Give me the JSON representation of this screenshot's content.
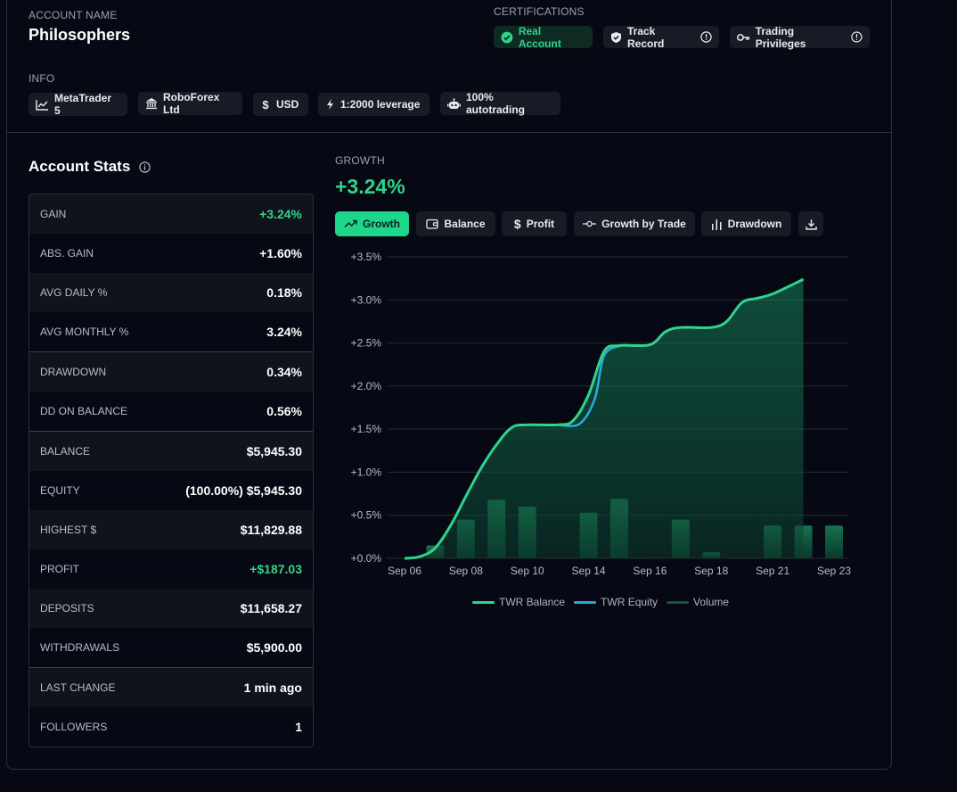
{
  "account": {
    "name_label": "ACCOUNT NAME",
    "name": "Philosophers",
    "certifications_label": "CERTIFICATIONS",
    "certifications": [
      "Real Account",
      "Track Record",
      "Trading Privileges"
    ],
    "info_label": "INFO",
    "info": [
      "MetaTrader 5",
      "RoboForex Ltd",
      "USD",
      "1:2000 leverage",
      "100% autotrading"
    ]
  },
  "stats": {
    "title": "Account Stats",
    "rows": [
      {
        "label": "GAIN",
        "value": "+3.24%"
      },
      {
        "label": "ABS. GAIN",
        "value": "+1.60%"
      },
      {
        "label": "AVG DAILY %",
        "value": "0.18%"
      },
      {
        "label": "AVG MONTHLY %",
        "value": "3.24%"
      },
      {
        "label": "DRAWDOWN",
        "value": "0.34%"
      },
      {
        "label": "DD ON BALANCE",
        "value": "0.56%"
      },
      {
        "label": "BALANCE",
        "value": "$5,945.30"
      },
      {
        "label": "EQUITY",
        "value": "(100.00%) $5,945.30"
      },
      {
        "label": "HIGHEST $",
        "value": "$11,829.88"
      },
      {
        "label": "PROFIT",
        "value": "+$187.03"
      },
      {
        "label": "DEPOSITS",
        "value": "$11,658.27"
      },
      {
        "label": "WITHDRAWALS",
        "value": "$5,900.00"
      },
      {
        "label": "LAST CHANGE",
        "value": "1 min ago"
      },
      {
        "label": "FOLLOWERS",
        "value": "1"
      }
    ]
  },
  "growth": {
    "label": "GROWTH",
    "value": "+3.24%",
    "tabs": [
      "Growth",
      "Balance",
      "Profit",
      "Growth by Trade",
      "Drawdown"
    ],
    "active_tab": "Growth"
  },
  "colors": {
    "accent": "#1ed68a",
    "balance_line": "#2fd38c",
    "equity_line": "#2aa9d6",
    "volume": "#14553f"
  },
  "chart_data": {
    "type": "line",
    "ylim": [
      0,
      3.5
    ],
    "y_ticks": [
      "+0.0%",
      "+0.5%",
      "+1.0%",
      "+1.5%",
      "+2.0%",
      "+2.5%",
      "+3.0%",
      "+3.5%"
    ],
    "x_ticks": [
      "Sep 06",
      "Sep 08",
      "Sep 10",
      "Sep 14",
      "Sep 16",
      "Sep 18",
      "Sep 21",
      "Sep 23"
    ],
    "series": [
      {
        "name": "TWR Balance",
        "points": [
          [
            0,
            0
          ],
          [
            0.5,
            0.02
          ],
          [
            1,
            0.12
          ],
          [
            1.5,
            0.38
          ],
          [
            2,
            0.72
          ],
          [
            2.5,
            1.05
          ],
          [
            3,
            1.32
          ],
          [
            3.5,
            1.52
          ],
          [
            4,
            1.55
          ],
          [
            5,
            1.55
          ],
          [
            5.5,
            1.6
          ],
          [
            6,
            1.9
          ],
          [
            6.5,
            2.4
          ],
          [
            7,
            2.47
          ],
          [
            8,
            2.48
          ],
          [
            8.5,
            2.63
          ],
          [
            9,
            2.68
          ],
          [
            10,
            2.68
          ],
          [
            10.5,
            2.75
          ],
          [
            11,
            2.97
          ],
          [
            11.5,
            3.02
          ],
          [
            12,
            3.07
          ],
          [
            13,
            3.24
          ]
        ]
      },
      {
        "name": "TWR Equity",
        "points": [
          [
            5,
            1.55
          ],
          [
            5.7,
            1.56
          ],
          [
            6.2,
            1.85
          ],
          [
            6.5,
            2.35
          ],
          [
            7,
            2.47
          ]
        ]
      },
      {
        "name": "Volume",
        "points": [
          [
            1,
            0.15
          ],
          [
            2,
            0.45
          ],
          [
            3,
            0.68
          ],
          [
            4,
            0.6
          ],
          [
            6,
            0.53
          ],
          [
            7,
            0.69
          ],
          [
            9,
            0.45
          ],
          [
            10,
            0.07
          ],
          [
            12,
            0.38
          ],
          [
            13,
            0.38
          ],
          [
            14,
            0.38
          ]
        ]
      }
    ]
  }
}
